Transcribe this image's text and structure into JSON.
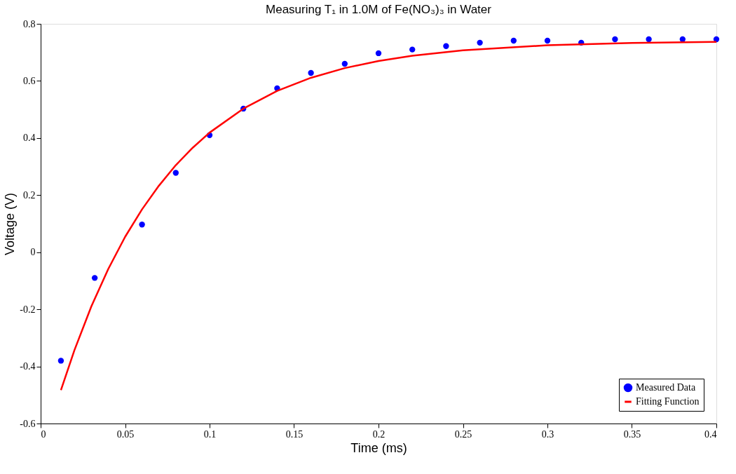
{
  "chart_data": {
    "type": "scatter",
    "title": "Measuring T₁ in 1.0M of Fe(NO₃)₃ in Water",
    "xlabel": "Time (ms)",
    "ylabel": "Voltage (V)",
    "xlim": [
      0,
      0.4
    ],
    "xticks": [
      0,
      0.05,
      0.1,
      0.15,
      0.2,
      0.25,
      0.3,
      0.35,
      0.4
    ],
    "ylim": [
      -0.6,
      0.8
    ],
    "yticks": [
      -0.6,
      -0.4,
      -0.2,
      0,
      0.2,
      0.4,
      0.6,
      0.8
    ],
    "grid": false,
    "legend": "bottom right",
    "series": [
      {
        "name": "Measured Data",
        "marker": "circle",
        "color": "#0000ff",
        "x": [
          0.012,
          0.032,
          0.06,
          0.08,
          0.1,
          0.12,
          0.14,
          0.16,
          0.18,
          0.2,
          0.22,
          0.24,
          0.26,
          0.28,
          0.3,
          0.32,
          0.34,
          0.36,
          0.38,
          0.4
        ],
        "values": [
          -0.38,
          -0.09,
          0.097,
          0.278,
          0.41,
          0.503,
          0.574,
          0.628,
          0.66,
          0.697,
          0.71,
          0.722,
          0.734,
          0.741,
          0.741,
          0.734,
          0.746,
          0.746,
          0.746,
          0.746
        ]
      },
      {
        "name": "Fitting Function",
        "type": "line",
        "line_style": "solid",
        "color": "#ff0000",
        "x": [
          0.012,
          0.02,
          0.03,
          0.04,
          0.05,
          0.06,
          0.07,
          0.08,
          0.09,
          0.1,
          0.12,
          0.14,
          0.16,
          0.18,
          0.2,
          0.22,
          0.25,
          0.3,
          0.35,
          0.4
        ],
        "values": [
          -0.483,
          -0.343,
          -0.19,
          -0.059,
          0.054,
          0.15,
          0.233,
          0.305,
          0.366,
          0.419,
          0.503,
          0.565,
          0.611,
          0.645,
          0.67,
          0.688,
          0.707,
          0.725,
          0.733,
          0.737
        ]
      }
    ]
  }
}
